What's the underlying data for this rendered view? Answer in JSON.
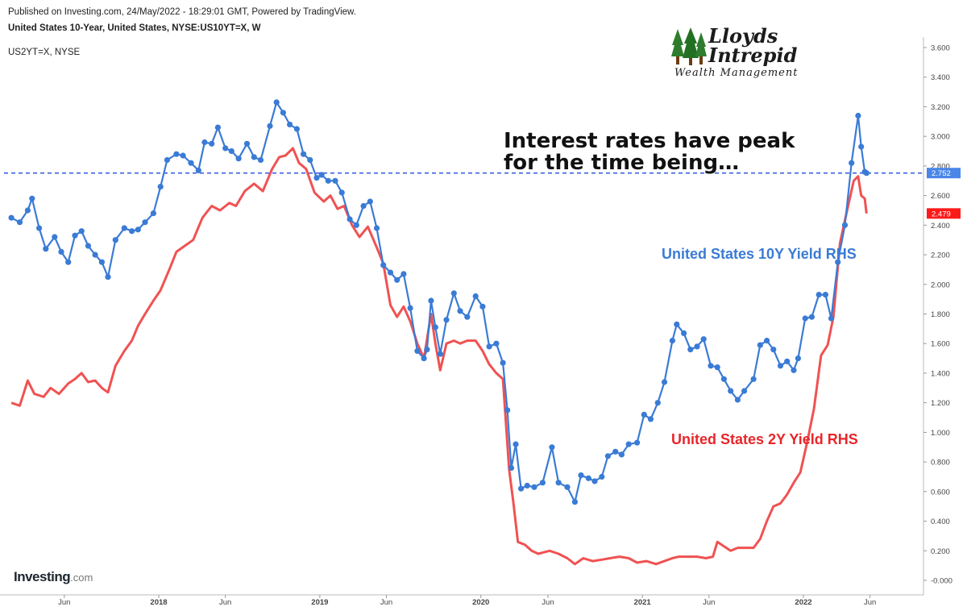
{
  "header": {
    "published": "Published on Investing.com, 24/May/2022 - 18:29:01 GMT, Powered by TradingView.",
    "symbol": "United States 10-Year, United States, NYSE:US10YT=X, W",
    "secondary_symbol": "US2YT=X, NYSE"
  },
  "logo": {
    "line1": "Lloyds",
    "line2": "Intrepid",
    "line3": "Wealth Management",
    "icon": "tree-icon"
  },
  "brand": {
    "name": "Investing",
    "suffix": ".com"
  },
  "annotations": {
    "headline_line1": "Interest rates have peak",
    "headline_line2": "for the time being…",
    "label_10y": "United States 10Y Yield RHS",
    "label_2y": "United States 2Y Yield RHS"
  },
  "colors": {
    "ten_year": "#3a7bd5",
    "two_year": "#f05252",
    "headline": "#111111",
    "last_10y_badge": "#4a86e8",
    "last_2y_badge": "#ff1a1a",
    "axis": "#888888"
  },
  "chart_data": {
    "type": "line",
    "title": "United States 10-Year, United States, NYSE:US10YT=X, W",
    "ylim": [
      -0.05,
      3.65
    ],
    "yticks": [
      "3.600",
      "3.400",
      "3.200",
      "3.000",
      "2.800",
      "2.600",
      "2.400",
      "2.200",
      "2.000",
      "1.800",
      "1.600",
      "1.400",
      "1.200",
      "1.000",
      "0.800",
      "0.600",
      "0.400",
      "0.200",
      "-0.000"
    ],
    "xticks": [
      {
        "label": "Jun",
        "date": "2017-06-01"
      },
      {
        "label": "2018",
        "date": "2018-01-01"
      },
      {
        "label": "Jun",
        "date": "2018-06-01"
      },
      {
        "label": "2019",
        "date": "2019-01-01"
      },
      {
        "label": "Jun",
        "date": "2019-06-01"
      },
      {
        "label": "2020",
        "date": "2020-01-01"
      },
      {
        "label": "Jun",
        "date": "2020-06-01"
      },
      {
        "label": "2021",
        "date": "2021-01-01"
      },
      {
        "label": "Jun",
        "date": "2021-06-01"
      },
      {
        "label": "2022",
        "date": "2022-01-01"
      },
      {
        "label": "Jun",
        "date": "2022-06-01"
      }
    ],
    "x_range": [
      "2017-02-01",
      "2022-09-15"
    ],
    "reference_line": {
      "value": 2.752,
      "style": "dashed"
    },
    "last_values": [
      {
        "series": "United States 10Y Yield RHS",
        "value": "2.752"
      },
      {
        "series": "United States 2Y Yield RHS",
        "value": "2.479"
      }
    ],
    "series": [
      {
        "name": "United States 10Y Yield RHS",
        "markers": true,
        "points": [
          [
            "2017-02-01",
            2.45
          ],
          [
            "2017-02-20",
            2.42
          ],
          [
            "2017-03-10",
            2.5
          ],
          [
            "2017-03-20",
            2.58
          ],
          [
            "2017-04-05",
            2.38
          ],
          [
            "2017-04-20",
            2.24
          ],
          [
            "2017-05-10",
            2.32
          ],
          [
            "2017-05-25",
            2.22
          ],
          [
            "2017-06-10",
            2.15
          ],
          [
            "2017-06-25",
            2.33
          ],
          [
            "2017-07-10",
            2.36
          ],
          [
            "2017-07-25",
            2.26
          ],
          [
            "2017-08-10",
            2.2
          ],
          [
            "2017-08-25",
            2.15
          ],
          [
            "2017-09-08",
            2.05
          ],
          [
            "2017-09-25",
            2.3
          ],
          [
            "2017-10-15",
            2.38
          ],
          [
            "2017-11-01",
            2.36
          ],
          [
            "2017-11-15",
            2.37
          ],
          [
            "2017-12-01",
            2.42
          ],
          [
            "2017-12-20",
            2.48
          ],
          [
            "2018-01-05",
            2.66
          ],
          [
            "2018-01-20",
            2.84
          ],
          [
            "2018-02-10",
            2.88
          ],
          [
            "2018-02-25",
            2.87
          ],
          [
            "2018-03-15",
            2.82
          ],
          [
            "2018-04-01",
            2.77
          ],
          [
            "2018-04-15",
            2.96
          ],
          [
            "2018-05-01",
            2.95
          ],
          [
            "2018-05-15",
            3.06
          ],
          [
            "2018-06-01",
            2.92
          ],
          [
            "2018-06-15",
            2.9
          ],
          [
            "2018-07-01",
            2.85
          ],
          [
            "2018-07-20",
            2.95
          ],
          [
            "2018-08-05",
            2.86
          ],
          [
            "2018-08-20",
            2.84
          ],
          [
            "2018-09-10",
            3.07
          ],
          [
            "2018-09-25",
            3.23
          ],
          [
            "2018-10-10",
            3.16
          ],
          [
            "2018-10-25",
            3.08
          ],
          [
            "2018-11-10",
            3.05
          ],
          [
            "2018-11-25",
            2.88
          ],
          [
            "2018-12-10",
            2.84
          ],
          [
            "2018-12-25",
            2.72
          ],
          [
            "2019-01-05",
            2.74
          ],
          [
            "2019-01-20",
            2.7
          ],
          [
            "2019-02-05",
            2.7
          ],
          [
            "2019-02-20",
            2.62
          ],
          [
            "2019-03-10",
            2.44
          ],
          [
            "2019-03-25",
            2.4
          ],
          [
            "2019-04-10",
            2.53
          ],
          [
            "2019-04-25",
            2.56
          ],
          [
            "2019-05-10",
            2.38
          ],
          [
            "2019-05-25",
            2.13
          ],
          [
            "2019-06-10",
            2.08
          ],
          [
            "2019-06-25",
            2.03
          ],
          [
            "2019-07-10",
            2.07
          ],
          [
            "2019-07-25",
            1.84
          ],
          [
            "2019-08-10",
            1.55
          ],
          [
            "2019-08-25",
            1.5
          ],
          [
            "2019-09-01",
            1.56
          ],
          [
            "2019-09-10",
            1.89
          ],
          [
            "2019-09-20",
            1.71
          ],
          [
            "2019-10-01",
            1.53
          ],
          [
            "2019-10-15",
            1.76
          ],
          [
            "2019-11-01",
            1.94
          ],
          [
            "2019-11-15",
            1.82
          ],
          [
            "2019-12-01",
            1.78
          ],
          [
            "2019-12-20",
            1.92
          ],
          [
            "2020-01-05",
            1.85
          ],
          [
            "2020-01-20",
            1.58
          ],
          [
            "2020-02-05",
            1.6
          ],
          [
            "2020-02-20",
            1.47
          ],
          [
            "2020-03-01",
            1.15
          ],
          [
            "2020-03-10",
            0.76
          ],
          [
            "2020-03-20",
            0.92
          ],
          [
            "2020-04-01",
            0.62
          ],
          [
            "2020-04-15",
            0.64
          ],
          [
            "2020-05-01",
            0.63
          ],
          [
            "2020-05-20",
            0.66
          ],
          [
            "2020-06-10",
            0.9
          ],
          [
            "2020-06-25",
            0.66
          ],
          [
            "2020-07-15",
            0.63
          ],
          [
            "2020-08-01",
            0.53
          ],
          [
            "2020-08-15",
            0.71
          ],
          [
            "2020-09-01",
            0.69
          ],
          [
            "2020-09-15",
            0.67
          ],
          [
            "2020-10-01",
            0.7
          ],
          [
            "2020-10-15",
            0.84
          ],
          [
            "2020-11-01",
            0.87
          ],
          [
            "2020-11-15",
            0.85
          ],
          [
            "2020-12-01",
            0.92
          ],
          [
            "2020-12-20",
            0.93
          ],
          [
            "2021-01-05",
            1.12
          ],
          [
            "2021-01-20",
            1.09
          ],
          [
            "2021-02-05",
            1.2
          ],
          [
            "2021-02-20",
            1.34
          ],
          [
            "2021-03-10",
            1.62
          ],
          [
            "2021-03-20",
            1.73
          ],
          [
            "2021-04-05",
            1.67
          ],
          [
            "2021-04-20",
            1.56
          ],
          [
            "2021-05-05",
            1.58
          ],
          [
            "2021-05-20",
            1.63
          ],
          [
            "2021-06-05",
            1.45
          ],
          [
            "2021-06-20",
            1.44
          ],
          [
            "2021-07-05",
            1.36
          ],
          [
            "2021-07-20",
            1.28
          ],
          [
            "2021-08-05",
            1.22
          ],
          [
            "2021-08-20",
            1.28
          ],
          [
            "2021-09-10",
            1.36
          ],
          [
            "2021-09-25",
            1.59
          ],
          [
            "2021-10-10",
            1.62
          ],
          [
            "2021-10-25",
            1.56
          ],
          [
            "2021-11-10",
            1.45
          ],
          [
            "2021-11-25",
            1.48
          ],
          [
            "2021-12-10",
            1.42
          ],
          [
            "2021-12-20",
            1.5
          ],
          [
            "2022-01-05",
            1.77
          ],
          [
            "2022-01-20",
            1.78
          ],
          [
            "2022-02-05",
            1.93
          ],
          [
            "2022-02-20",
            1.93
          ],
          [
            "2022-03-05",
            1.77
          ],
          [
            "2022-03-20",
            2.15
          ],
          [
            "2022-04-05",
            2.4
          ],
          [
            "2022-04-20",
            2.82
          ],
          [
            "2022-05-05",
            3.14
          ],
          [
            "2022-05-12",
            2.93
          ],
          [
            "2022-05-20",
            2.76
          ],
          [
            "2022-05-24",
            2.752
          ]
        ]
      },
      {
        "name": "United States 2Y Yield RHS",
        "markers": false,
        "points": [
          [
            "2017-02-01",
            1.2
          ],
          [
            "2017-02-20",
            1.18
          ],
          [
            "2017-03-10",
            1.35
          ],
          [
            "2017-03-25",
            1.26
          ],
          [
            "2017-04-15",
            1.24
          ],
          [
            "2017-05-01",
            1.3
          ],
          [
            "2017-05-20",
            1.26
          ],
          [
            "2017-06-10",
            1.33
          ],
          [
            "2017-06-25",
            1.36
          ],
          [
            "2017-07-10",
            1.4
          ],
          [
            "2017-07-25",
            1.34
          ],
          [
            "2017-08-10",
            1.35
          ],
          [
            "2017-08-25",
            1.3
          ],
          [
            "2017-09-08",
            1.27
          ],
          [
            "2017-09-25",
            1.45
          ],
          [
            "2017-10-15",
            1.55
          ],
          [
            "2017-11-01",
            1.62
          ],
          [
            "2017-11-15",
            1.72
          ],
          [
            "2017-12-01",
            1.8
          ],
          [
            "2017-12-20",
            1.89
          ],
          [
            "2018-01-05",
            1.96
          ],
          [
            "2018-01-25",
            2.1
          ],
          [
            "2018-02-10",
            2.22
          ],
          [
            "2018-03-01",
            2.26
          ],
          [
            "2018-03-20",
            2.3
          ],
          [
            "2018-04-10",
            2.45
          ],
          [
            "2018-05-01",
            2.53
          ],
          [
            "2018-05-20",
            2.5
          ],
          [
            "2018-06-10",
            2.55
          ],
          [
            "2018-06-25",
            2.53
          ],
          [
            "2018-07-15",
            2.63
          ],
          [
            "2018-08-05",
            2.68
          ],
          [
            "2018-08-25",
            2.63
          ],
          [
            "2018-09-15",
            2.78
          ],
          [
            "2018-10-01",
            2.86
          ],
          [
            "2018-10-15",
            2.87
          ],
          [
            "2018-11-01",
            2.92
          ],
          [
            "2018-11-15",
            2.82
          ],
          [
            "2018-12-01",
            2.78
          ],
          [
            "2018-12-20",
            2.62
          ],
          [
            "2019-01-10",
            2.56
          ],
          [
            "2019-01-25",
            2.6
          ],
          [
            "2019-02-10",
            2.51
          ],
          [
            "2019-02-25",
            2.53
          ],
          [
            "2019-03-15",
            2.4
          ],
          [
            "2019-04-01",
            2.32
          ],
          [
            "2019-04-20",
            2.39
          ],
          [
            "2019-05-10",
            2.25
          ],
          [
            "2019-05-25",
            2.14
          ],
          [
            "2019-06-10",
            1.86
          ],
          [
            "2019-06-25",
            1.78
          ],
          [
            "2019-07-10",
            1.85
          ],
          [
            "2019-07-25",
            1.75
          ],
          [
            "2019-08-10",
            1.6
          ],
          [
            "2019-08-25",
            1.5
          ],
          [
            "2019-09-10",
            1.8
          ],
          [
            "2019-09-20",
            1.6
          ],
          [
            "2019-10-01",
            1.42
          ],
          [
            "2019-10-15",
            1.6
          ],
          [
            "2019-11-01",
            1.62
          ],
          [
            "2019-11-15",
            1.6
          ],
          [
            "2019-12-01",
            1.62
          ],
          [
            "2019-12-20",
            1.62
          ],
          [
            "2020-01-05",
            1.55
          ],
          [
            "2020-01-20",
            1.46
          ],
          [
            "2020-02-05",
            1.4
          ],
          [
            "2020-02-20",
            1.36
          ],
          [
            "2020-03-05",
            0.75
          ],
          [
            "2020-03-15",
            0.52
          ],
          [
            "2020-03-25",
            0.26
          ],
          [
            "2020-04-10",
            0.24
          ],
          [
            "2020-04-25",
            0.2
          ],
          [
            "2020-05-10",
            0.18
          ],
          [
            "2020-06-05",
            0.2
          ],
          [
            "2020-06-25",
            0.18
          ],
          [
            "2020-07-15",
            0.15
          ],
          [
            "2020-08-01",
            0.11
          ],
          [
            "2020-08-20",
            0.15
          ],
          [
            "2020-09-10",
            0.13
          ],
          [
            "2020-10-01",
            0.14
          ],
          [
            "2020-10-20",
            0.15
          ],
          [
            "2020-11-10",
            0.16
          ],
          [
            "2020-12-01",
            0.15
          ],
          [
            "2020-12-20",
            0.12
          ],
          [
            "2021-01-10",
            0.13
          ],
          [
            "2021-02-01",
            0.11
          ],
          [
            "2021-02-20",
            0.13
          ],
          [
            "2021-03-10",
            0.15
          ],
          [
            "2021-03-25",
            0.16
          ],
          [
            "2021-04-15",
            0.16
          ],
          [
            "2021-05-05",
            0.16
          ],
          [
            "2021-05-25",
            0.15
          ],
          [
            "2021-06-10",
            0.16
          ],
          [
            "2021-06-20",
            0.26
          ],
          [
            "2021-07-05",
            0.23
          ],
          [
            "2021-07-20",
            0.2
          ],
          [
            "2021-08-05",
            0.22
          ],
          [
            "2021-08-20",
            0.22
          ],
          [
            "2021-09-10",
            0.22
          ],
          [
            "2021-09-25",
            0.28
          ],
          [
            "2021-10-10",
            0.4
          ],
          [
            "2021-10-25",
            0.5
          ],
          [
            "2021-11-10",
            0.52
          ],
          [
            "2021-11-25",
            0.58
          ],
          [
            "2021-12-10",
            0.66
          ],
          [
            "2021-12-25",
            0.73
          ],
          [
            "2022-01-10",
            0.94
          ],
          [
            "2022-01-25",
            1.16
          ],
          [
            "2022-02-10",
            1.52
          ],
          [
            "2022-02-25",
            1.59
          ],
          [
            "2022-03-10",
            1.78
          ],
          [
            "2022-03-25",
            2.28
          ],
          [
            "2022-04-10",
            2.5
          ],
          [
            "2022-04-25",
            2.7
          ],
          [
            "2022-05-05",
            2.73
          ],
          [
            "2022-05-12",
            2.6
          ],
          [
            "2022-05-20",
            2.58
          ],
          [
            "2022-05-24",
            2.479
          ]
        ]
      }
    ]
  }
}
